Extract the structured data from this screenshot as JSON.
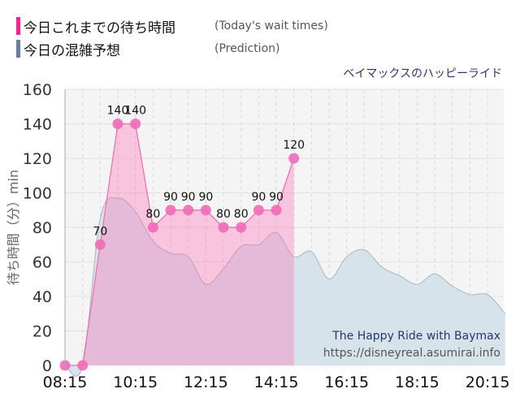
{
  "legend": {
    "actual": {
      "label_jp": "今日これまでの待ち時間",
      "label_en": "(Today's wait times)",
      "color": "#FF1F8E"
    },
    "prediction": {
      "label_jp": "今日の混雑予想",
      "label_en": "(Prediction)",
      "color": "#6B7BA4"
    }
  },
  "subtitle": "ベイマックスのハッピーライド",
  "credit": {
    "title": "The Happy Ride with Baymax",
    "url": "https://disneyreal.asumirai.info"
  },
  "axis": {
    "ylabel": "待ち時間（分）min",
    "yticks": [
      "0",
      "20",
      "40",
      "60",
      "80",
      "100",
      "120",
      "140",
      "160"
    ],
    "xticks": [
      "08:15",
      "10:15",
      "12:15",
      "14:15",
      "16:15",
      "18:15",
      "20:15"
    ]
  },
  "chart_data": {
    "type": "area",
    "title": "ベイマックスのハッピーライド",
    "xlabel": "",
    "ylabel": "待ち時間（分）min",
    "ylim": [
      0,
      160
    ],
    "xlim": [
      "08:15",
      "21:00"
    ],
    "grid": true,
    "legend_position": "top-left",
    "series": [
      {
        "name": "今日これまでの待ち時間 (Today's wait times)",
        "color": "#FF1F8E",
        "x": [
          "08:15",
          "08:45",
          "09:15",
          "09:45",
          "10:15",
          "10:45",
          "11:15",
          "11:45",
          "12:15",
          "12:45",
          "13:15",
          "13:45",
          "14:15",
          "14:45"
        ],
        "values": [
          0,
          0,
          70,
          140,
          140,
          80,
          90,
          90,
          90,
          80,
          80,
          90,
          90,
          120
        ],
        "labels": [
          "",
          "",
          "70",
          "140",
          "140",
          "80",
          "90",
          "90",
          "90",
          "80",
          "80",
          "90",
          "90",
          "120"
        ]
      },
      {
        "name": "今日の混雑予想 (Prediction)",
        "color": "#6B7BA4",
        "x": [
          "08:15",
          "08:45",
          "09:15",
          "09:45",
          "10:15",
          "10:45",
          "11:15",
          "11:45",
          "12:15",
          "12:45",
          "13:15",
          "13:45",
          "14:15",
          "14:45",
          "15:15",
          "15:45",
          "16:15",
          "16:45",
          "17:15",
          "17:45",
          "18:15",
          "18:45",
          "19:15",
          "19:45",
          "20:15",
          "20:45"
        ],
        "values": [
          0,
          0,
          85,
          97,
          89,
          72,
          65,
          63,
          47,
          56,
          69,
          70,
          77,
          63,
          66,
          50,
          63,
          67,
          57,
          52,
          47,
          53,
          46,
          41,
          41,
          30
        ]
      }
    ]
  }
}
